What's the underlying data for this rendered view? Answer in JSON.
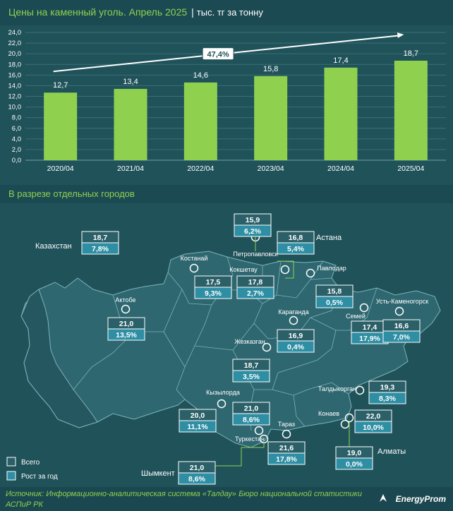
{
  "header": {
    "title": "Цены на каменный уголь. Апрель 2025",
    "separator": "|",
    "unit": "тыс. тг за тонну"
  },
  "chart_data": {
    "type": "bar",
    "categories": [
      "2020/04",
      "2021/04",
      "2022/04",
      "2023/04",
      "2024/04",
      "2025/04"
    ],
    "values": [
      12.7,
      13.4,
      14.6,
      15.8,
      17.4,
      18.7
    ],
    "value_labels": [
      "12,7",
      "13,4",
      "14,6",
      "15,8",
      "17,4",
      "18,7"
    ],
    "ylim": [
      0,
      24
    ],
    "yticks": [
      "0,0",
      "2,0",
      "4,0",
      "6,0",
      "8,0",
      "10,0",
      "12,0",
      "14,0",
      "16,0",
      "18,0",
      "20,0",
      "22,0",
      "24,0"
    ],
    "growth_label": "47,4%",
    "bar_color": "#8fd14f",
    "grid": true
  },
  "section": {
    "title": "В разрезе отдельных городов"
  },
  "map": {
    "region_color": "#2e6770",
    "border_color": "#7fb3b9",
    "connector_color": "#8fd14f",
    "tag_total_color": "#2b6069",
    "tag_growth_color": "#2e8ea3",
    "cities": [
      {
        "name": "Казахстан",
        "total": "18,7",
        "growth": "7,8%"
      },
      {
        "name": "Петропавловск",
        "total": "15,9",
        "growth": "6,2%"
      },
      {
        "name": "Астана",
        "total": "16,8",
        "growth": "5,4%"
      },
      {
        "name": "Костанай",
        "total": "17,5",
        "growth": "9,3%"
      },
      {
        "name": "Кокшетау",
        "total": "17,8",
        "growth": "2,7%"
      },
      {
        "name": "Павлодар",
        "total": "15,8",
        "growth": "0,5%"
      },
      {
        "name": "Актобе",
        "total": "21,0",
        "growth": "13,5%"
      },
      {
        "name": "Семей",
        "total": "17,4",
        "growth": "17,9%"
      },
      {
        "name": "Усть-Каменогорск",
        "total": "16,6",
        "growth": "7,0%"
      },
      {
        "name": "Караганда",
        "total": "16,9",
        "growth": "0,4%"
      },
      {
        "name": "Жезказган",
        "total": "18,7",
        "growth": "3,5%"
      },
      {
        "name": "Кызылорда",
        "total": "20,0",
        "growth": "11,1%"
      },
      {
        "name": "Туркестан",
        "total": "21,0",
        "growth": "8,6%"
      },
      {
        "name": "Талдыкорган",
        "total": "19,3",
        "growth": "8,3%"
      },
      {
        "name": "Конаев",
        "total": "22,0",
        "growth": "10,0%"
      },
      {
        "name": "Тараз",
        "total": "21,6",
        "growth": "17,8%"
      },
      {
        "name": "Алматы",
        "total": "19,0",
        "growth": "0,0%"
      },
      {
        "name": "Шымкент",
        "total": "21,0",
        "growth": "8,6%"
      }
    ]
  },
  "legend": {
    "total_label": "Всего",
    "growth_label": "Рост за год"
  },
  "footer": {
    "source": "Источник: Информационно-аналитическая система «Талдау» Бюро национальной статистики АСПиР РК",
    "brand": "EnergyProm"
  }
}
